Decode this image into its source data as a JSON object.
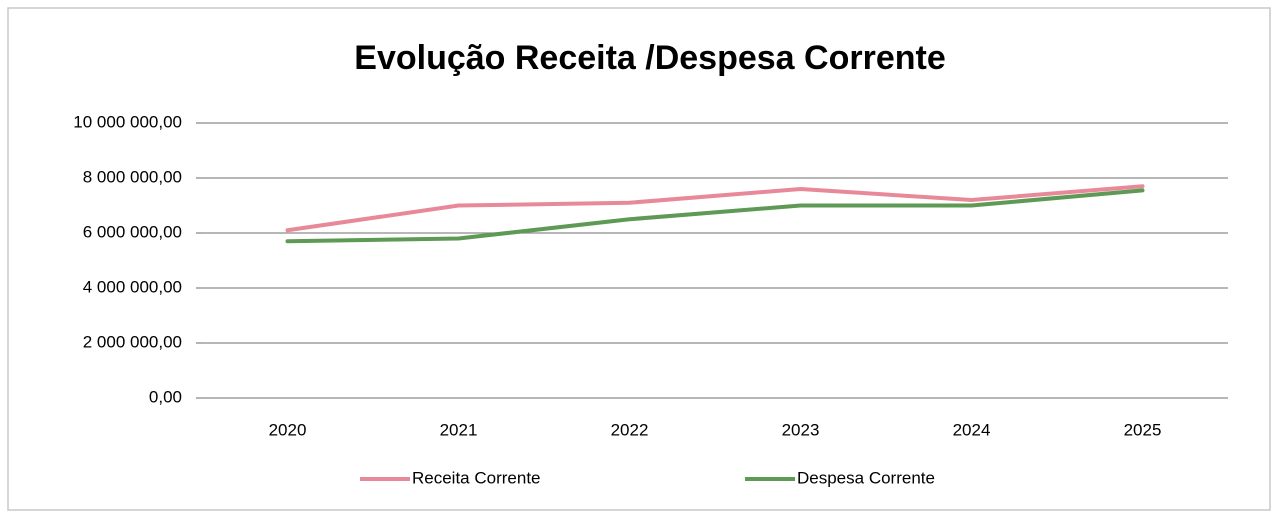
{
  "chart_data": {
    "type": "line",
    "title": "Evolução Receita /Despesa Corrente",
    "categories": [
      "2020",
      "2021",
      "2022",
      "2023",
      "2024",
      "2025"
    ],
    "series": [
      {
        "name": "Receita Corrente",
        "color": "#e8899a",
        "values": [
          6100000,
          7000000,
          7100000,
          7600000,
          7200000,
          7700000
        ]
      },
      {
        "name": "Despesa Corrente",
        "color": "#5e9a55",
        "values": [
          5700000,
          5800000,
          6500000,
          7000000,
          7000000,
          7550000
        ]
      }
    ],
    "ylim": [
      0,
      10000000
    ],
    "yticks": [
      {
        "value": 0,
        "label": "0,00"
      },
      {
        "value": 2000000,
        "label": "2 000 000,00"
      },
      {
        "value": 4000000,
        "label": "4 000 000,00"
      },
      {
        "value": 6000000,
        "label": "6 000 000,00"
      },
      {
        "value": 8000000,
        "label": "8 000 000,00"
      },
      {
        "value": 10000000,
        "label": "10 000 000,00"
      }
    ],
    "grid": true,
    "legend": "bottom"
  }
}
